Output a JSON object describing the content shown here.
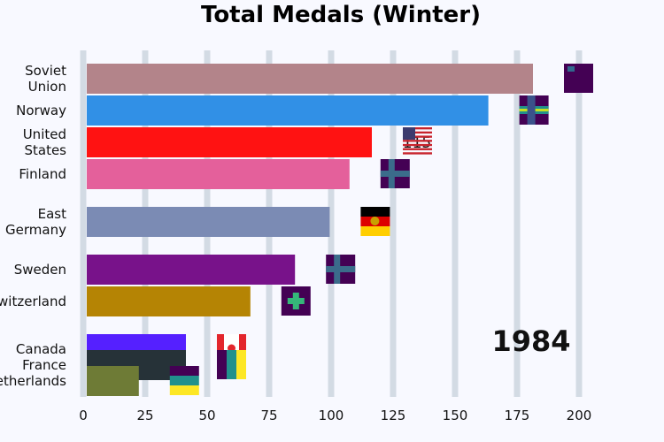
{
  "chart_data": {
    "type": "bar",
    "orientation": "horizontal",
    "title": "Total Medals (Winter)",
    "year_label": "1984",
    "xlim": [
      0,
      200
    ],
    "xticks": [
      0,
      25,
      50,
      75,
      100,
      125,
      150,
      175,
      200
    ],
    "grid": true,
    "bars": [
      {
        "category": "Soviet Union",
        "lines": [
          "Soviet",
          "Union"
        ],
        "value": 180,
        "value_label": "180",
        "color": "#b3848a",
        "flag": "soviet-union-flag-icon"
      },
      {
        "category": "Norway",
        "lines": [
          "Norway"
        ],
        "value": 162,
        "value_label": "162",
        "color": "#3190e6",
        "flag": "norway-flag-icon"
      },
      {
        "category": "United States",
        "lines": [
          "United",
          "States"
        ],
        "value": 115,
        "value_label": "115",
        "color": "#ff1212",
        "flag": "united-states-flag-icon"
      },
      {
        "category": "Finland",
        "lines": [
          "Finland"
        ],
        "value": 106,
        "value_label": "106",
        "color": "#e4609b",
        "flag": "finland-flag-icon"
      },
      {
        "category": "East Germany",
        "lines": [
          "East",
          "Germany"
        ],
        "value": 98,
        "value_label": "98",
        "color": "#7b8bb4",
        "flag": "east-germany-flag-icon"
      },
      {
        "category": "Sweden",
        "lines": [
          "Sweden"
        ],
        "value": 84,
        "value_label": "84",
        "color": "#78128a",
        "flag": "sweden-flag-icon"
      },
      {
        "category": "Switzerland",
        "lines": [
          "Switzerland"
        ],
        "value": 66,
        "value_label": "66",
        "color": "#b58404",
        "flag": "switzerland-flag-icon"
      },
      {
        "category": "Canada",
        "lines": [
          "Canada"
        ],
        "value": 40,
        "value_label": "40",
        "color": "#5520ff",
        "flag": "canada-flag-icon"
      },
      {
        "category": "France",
        "lines": [
          "France"
        ],
        "value": 40,
        "value_label": "40",
        "color": "#263238",
        "flag": "france-flag-icon"
      },
      {
        "category": "Netherlands",
        "lines": [
          "Netherlands"
        ],
        "value": 21,
        "value_label": "21",
        "color": "#6e7b36",
        "flag": "netherlands-flag-icon"
      }
    ]
  }
}
